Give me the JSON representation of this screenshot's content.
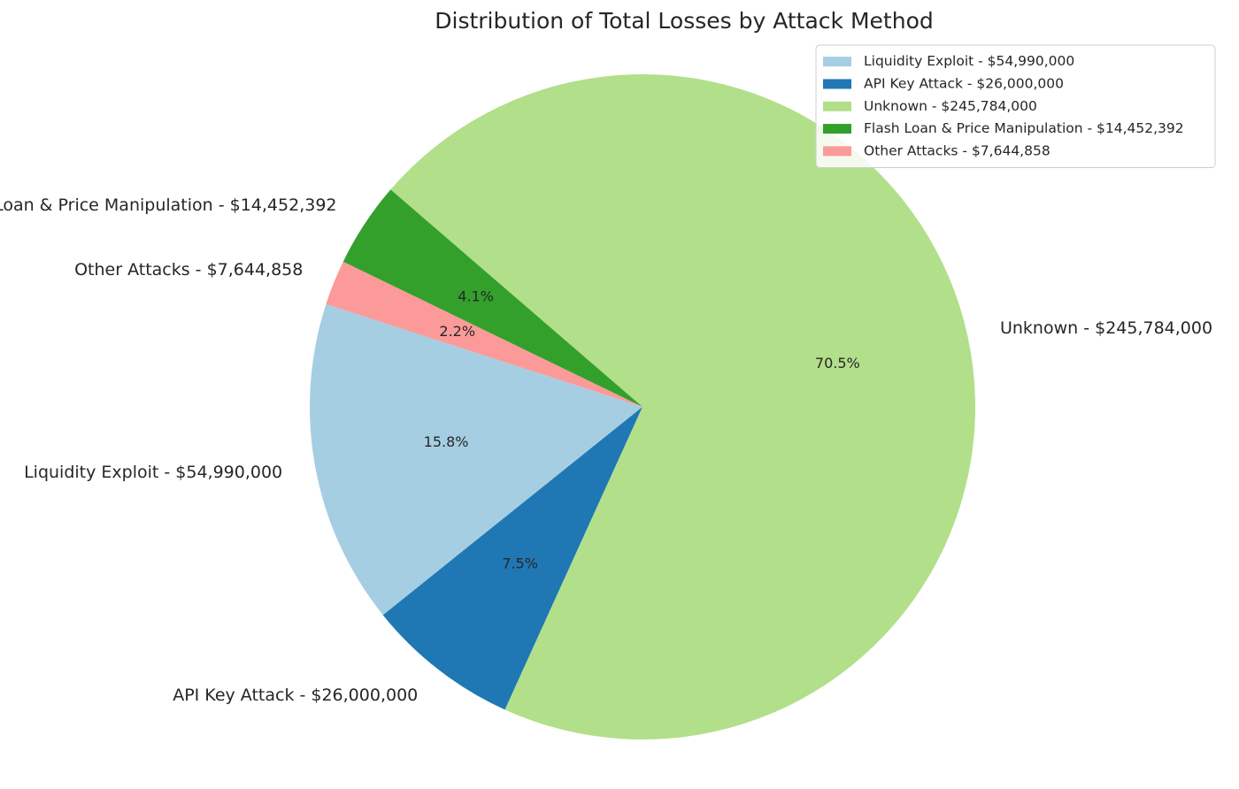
{
  "chart_data": {
    "type": "pie",
    "title": "Distribution of Total Losses by Attack Method",
    "start_angle_deg": 162,
    "direction": "counterclockwise",
    "legend_position": "top-right",
    "slices": [
      {
        "label": "Liquidity Exploit - $54,990,000",
        "value": 54990000,
        "percent_label": "15.8%",
        "color": "#a6cee3"
      },
      {
        "label": "API Key Attack - $26,000,000",
        "value": 26000000,
        "percent_label": "7.5%",
        "color": "#1f78b4"
      },
      {
        "label": "Unknown - $245,784,000",
        "value": 245784000,
        "percent_label": "70.5%",
        "color": "#b2df8a"
      },
      {
        "label": "Flash Loan & Price Manipulation - $14,452,392",
        "value": 14452392,
        "percent_label": "4.1%",
        "color": "#33a02c"
      },
      {
        "label": "Other Attacks - $7,644,858",
        "value": 7644858,
        "percent_label": "2.2%",
        "color": "#fb9a99"
      }
    ]
  }
}
